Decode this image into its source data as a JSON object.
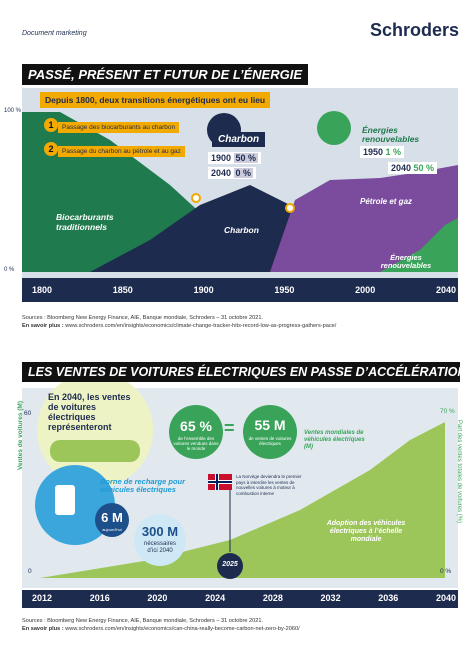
{
  "header": {
    "label": "Document marketing",
    "brand": "Schroders"
  },
  "energy": {
    "title": "PASSÉ, PRÉSENT ET FUTUR DE L’ÉNERGIE",
    "subtitle": "Depuis 1800, deux transitions énergétiques ont eu lieu",
    "y_top": "100 %",
    "y_bottom": "0 %",
    "steps": [
      {
        "number": "1",
        "text": "Passage des biocarburants au charbon"
      },
      {
        "number": "2",
        "text": "Passage du charbon au pétrole et au gaz"
      }
    ],
    "coal_box": {
      "title": "Charbon",
      "rows": [
        [
          "1900",
          "50 %"
        ],
        [
          "2040",
          "0 %"
        ]
      ]
    },
    "renew_box": {
      "title": "Énergies renouvelables",
      "rows": [
        [
          "1950",
          "1 %"
        ],
        [
          "2040",
          "50 %"
        ]
      ]
    },
    "areas": [
      "Biocarburants traditionnels",
      "Charbon",
      "Pétrole et gaz",
      "Énergies renouvelables"
    ],
    "years": [
      "1800",
      "1850",
      "1900",
      "1950",
      "2000",
      "2040"
    ],
    "sources": "Sources : Bloomberg New Energy Finance, AIE, Banque mondiale, Schroders – 31 octobre 2021.",
    "more_label": "En savoir plus :",
    "more_url": "www.schroders.com/en/insights/economics/climate-change-tracker-hits-record-low-as-progress-gathers-pace/"
  },
  "ev": {
    "title": "LES VENTES DE VOITURES ÉLECTRIQUES EN PASSE D’ACCÉLÉRATION",
    "intro": "En 2040, les ventes de voitures électriques représenteront",
    "share": "65 %",
    "share_text": "de l’ensemble des voitures vendues dans le monde",
    "equals": "=",
    "sales": "55 M",
    "sales_text": "de ventes de voitures électriques",
    "series_label": "Ventes mondiales de véhicules électriques (M)",
    "left_axis": "Ventes de voitures (M)",
    "left_top": "60",
    "left_bottom": "0",
    "right_axis": "Part des ventes totales de voitures (%)",
    "right_top": "70 %",
    "right_bottom": "0 %",
    "charger_title": "Borne de recharge pour véhicules électriques",
    "charger_now": "6 M",
    "charger_now_text": "aujourd’hui",
    "charger_need": "300 M",
    "charger_need_text": "nécessaires d’ici 2040",
    "norway": "La Norvège deviendra le premier pays à interdire les ventes de nouvelles voitures à moteur à combustion interne",
    "norway_year": "2025",
    "adoption": "Adoption des véhicules électriques à l’échelle mondiale",
    "years": [
      "2012",
      "2016",
      "2020",
      "2024",
      "2028",
      "2032",
      "2036",
      "2040"
    ],
    "sources": "Sources : Bloomberg New Energy Finance, AIE, Banque mondiale, Schroders – 31 octobre 2021.",
    "more_label": "En savoir plus :",
    "more_url": "www.schroders.com/en/insights/economics/can-china-really-become-carbon-net-zero-by-2060/"
  }
}
